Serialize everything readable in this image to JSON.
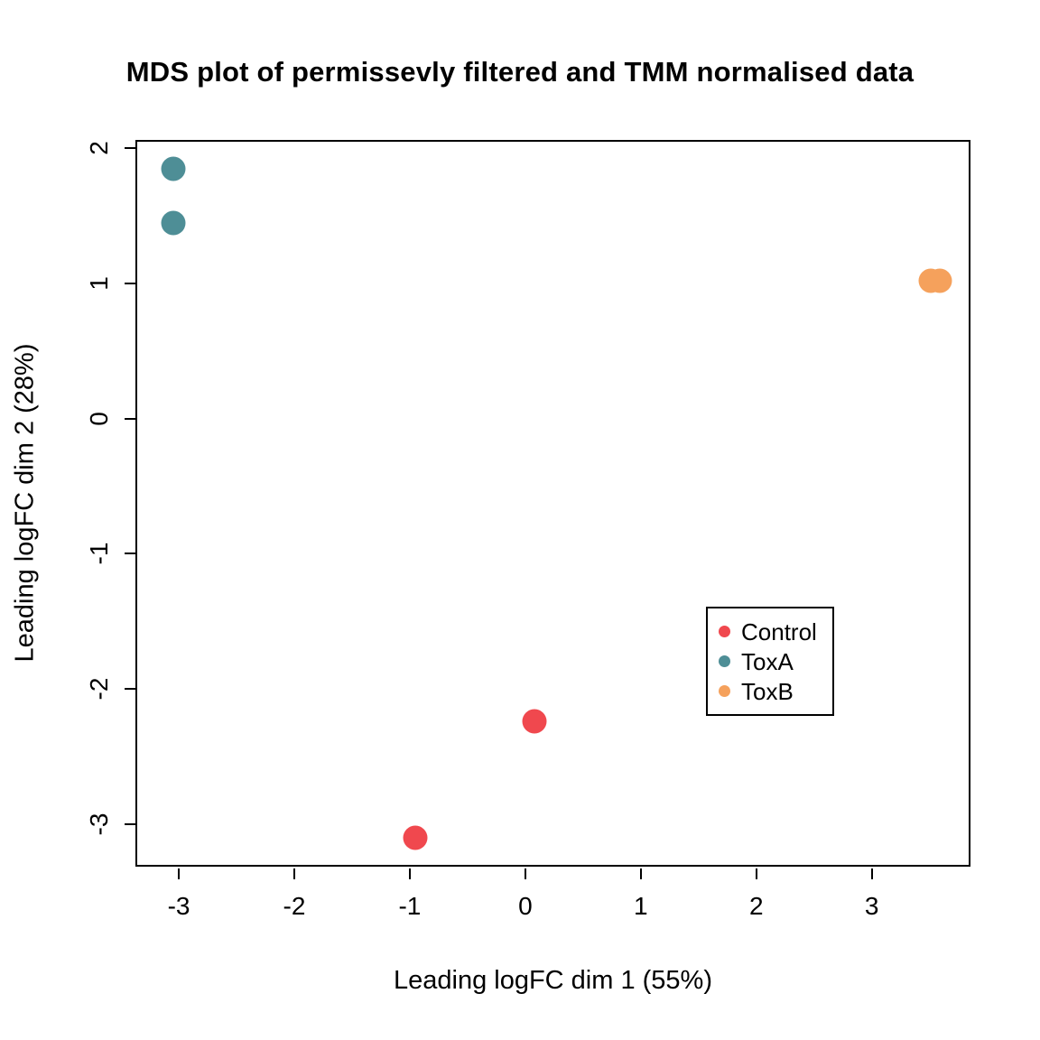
{
  "chart_data": {
    "type": "scatter",
    "title": "MDS plot of permissevly filtered and TMM normalised data",
    "xlabel": "Leading logFC dim 1 (55%)",
    "ylabel": "Leading logFC dim 2 (28%)",
    "xlim": [
      -3.36,
      3.87
    ],
    "ylim": [
      -3.33,
      2.05
    ],
    "xticks": [
      -3,
      -2,
      -1,
      0,
      1,
      2,
      3
    ],
    "yticks": [
      2,
      1,
      0,
      -1,
      -2,
      -3
    ],
    "grid": false,
    "legend_position": "bottom-right",
    "series": [
      {
        "name": "Control",
        "color": "#F0484E",
        "points": [
          [
            0.08,
            -2.24
          ],
          [
            -0.95,
            -3.1
          ]
        ]
      },
      {
        "name": "ToxA",
        "color": "#4E8E96",
        "points": [
          [
            -3.05,
            1.85
          ],
          [
            -3.05,
            1.45
          ]
        ]
      },
      {
        "name": "ToxB",
        "color": "#F5A15C",
        "points": [
          [
            3.51,
            1.02
          ],
          [
            3.59,
            1.02
          ]
        ]
      }
    ]
  }
}
